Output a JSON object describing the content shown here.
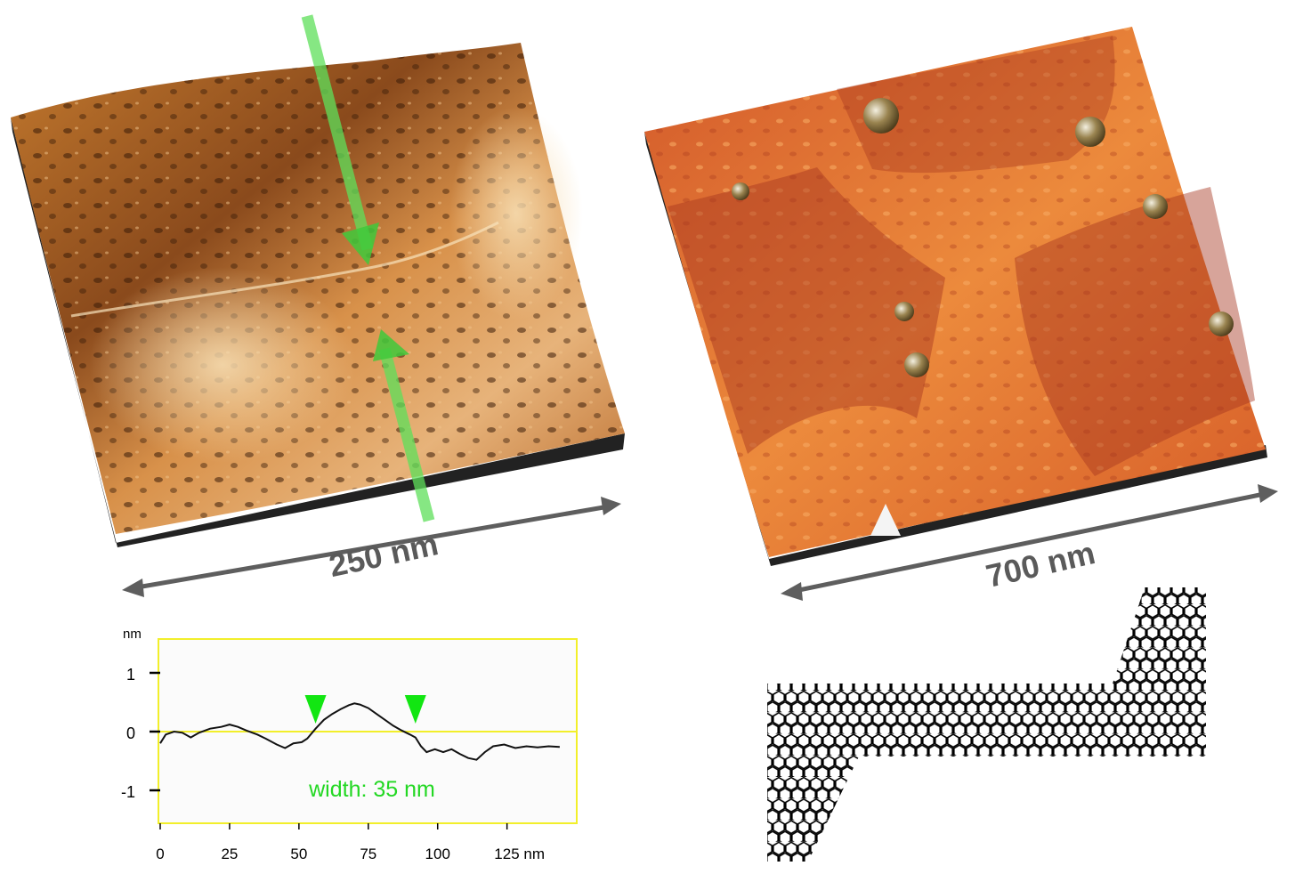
{
  "panels": {
    "left_scan": {
      "scale_label": "250 nm"
    },
    "right_scan": {
      "scale_label": "700 nm"
    }
  },
  "chart_data": {
    "type": "line",
    "ylabel_unit": "nm",
    "x_tick_labels": [
      "0",
      "25",
      "50",
      "75",
      "100",
      "125 nm"
    ],
    "y_tick_labels": [
      "1",
      "0",
      "-1"
    ],
    "xlim": [
      0,
      145
    ],
    "ylim": [
      -1.6,
      1.6
    ],
    "annotation": "width: 35 nm",
    "markers_x": [
      56,
      92
    ],
    "x": [
      0,
      2,
      5,
      8,
      11,
      14,
      18,
      22,
      25,
      28,
      31,
      35,
      38,
      42,
      45,
      48,
      51,
      53,
      56,
      59,
      62,
      65,
      68,
      70,
      72,
      75,
      78,
      81,
      84,
      87,
      90,
      92,
      94,
      96,
      99,
      102,
      105,
      108,
      111,
      114,
      117,
      120,
      124,
      128,
      132,
      136,
      140,
      144
    ],
    "y": [
      -0.2,
      -0.05,
      0.0,
      -0.02,
      -0.1,
      -0.02,
      0.05,
      0.08,
      0.12,
      0.08,
      0.02,
      -0.05,
      -0.12,
      -0.22,
      -0.28,
      -0.2,
      -0.18,
      -0.12,
      0.05,
      0.2,
      0.3,
      0.38,
      0.45,
      0.48,
      0.46,
      0.4,
      0.3,
      0.2,
      0.1,
      0.02,
      -0.05,
      -0.1,
      -0.25,
      -0.35,
      -0.3,
      -0.35,
      -0.3,
      -0.38,
      -0.45,
      -0.48,
      -0.35,
      -0.25,
      -0.22,
      -0.28,
      -0.25,
      -0.27,
      -0.25,
      -0.26
    ],
    "colors": {
      "frame": "#f2ef2a",
      "zero_line": "#f2ef2a",
      "trace": "#111111",
      "marker": "#12e612",
      "annotation": "#23d823"
    }
  }
}
